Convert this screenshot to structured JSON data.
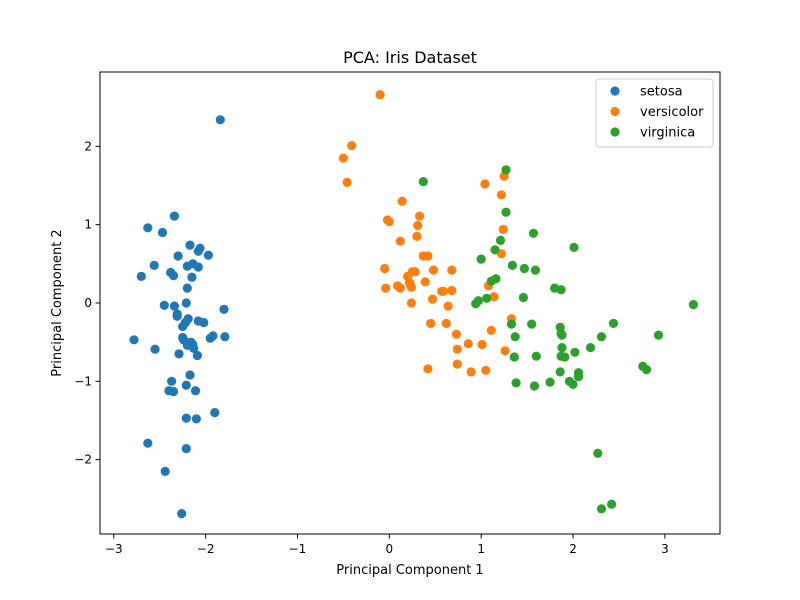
{
  "chart_data": {
    "type": "scatter",
    "title": "PCA: Iris Dataset",
    "xlabel": "Principal Component 1",
    "ylabel": "Principal Component 2",
    "xlim": [
      -3.15,
      3.6
    ],
    "ylim": [
      -2.95,
      2.95
    ],
    "xticks": [
      -3,
      -2,
      -1,
      0,
      1,
      2,
      3
    ],
    "yticks": [
      -2,
      -1,
      0,
      1,
      2
    ],
    "xtick_labels": [
      "−3",
      "−2",
      "−1",
      "0",
      "1",
      "2",
      "3"
    ],
    "ytick_labels": [
      "−2",
      "−1",
      "0",
      "1",
      "2"
    ],
    "grid": false,
    "legend_position": "top-right",
    "series": [
      {
        "name": "setosa",
        "color": "#1f77b4",
        "x": [
          -1.84,
          -2.63,
          -2.47,
          -2.34,
          -2.17,
          -2.06,
          -2.08,
          -2.2,
          -2.38,
          -2.35,
          -1.97,
          -2.3,
          -2.56,
          -2.14,
          -2.2,
          -2.08,
          -2.15,
          -2.7,
          -2.34,
          -2.21,
          -1.8,
          -2.45,
          -2.31,
          -2.19,
          -2.02,
          -2.31,
          -2.08,
          -2.22,
          -2.25,
          -2.25,
          -1.92,
          -2.16,
          -2.78,
          -2.55,
          -2.2,
          -2.14,
          -2.24,
          -2.09,
          -2.29,
          -2.13,
          -1.95,
          -1.79,
          -2.17,
          -2.37,
          -2.21,
          -2.11,
          -2.21,
          -2.1,
          -2.4,
          -2.35,
          -1.9,
          -2.63,
          -2.44,
          -2.21,
          -2.26
        ],
        "y": [
          2.34,
          0.96,
          0.9,
          1.11,
          0.74,
          0.7,
          0.66,
          0.19,
          0.39,
          0.35,
          0.61,
          0.6,
          0.48,
          0.5,
          0.47,
          0.46,
          0.33,
          0.34,
          -0.04,
          0.0,
          -0.08,
          -0.03,
          -0.14,
          -0.2,
          -0.25,
          -0.17,
          -0.23,
          -0.25,
          -0.3,
          -0.44,
          -0.42,
          -0.5,
          -0.47,
          -0.59,
          -0.54,
          -0.53,
          -0.47,
          -0.67,
          -0.65,
          -0.58,
          -0.45,
          -0.43,
          -0.92,
          -1.0,
          -1.05,
          -1.12,
          -1.47,
          -1.48,
          -1.12,
          -1.13,
          -1.4,
          -1.79,
          -2.15,
          -1.86,
          -2.69
        ]
      },
      {
        "name": "versicolor",
        "color": "#ff7f0e",
        "x": [
          -0.1,
          -0.41,
          -0.5,
          -0.46,
          -0.02,
          0.0,
          0.12,
          0.42,
          0.57,
          0.22,
          0.31,
          0.14,
          0.3,
          0.33,
          0.2,
          0.24,
          -0.05,
          0.39,
          0.25,
          0.48,
          0.68,
          0.24,
          0.23,
          -0.04,
          0.09,
          0.12,
          0.47,
          0.28,
          0.37,
          0.59,
          0.68,
          0.64,
          0.73,
          0.45,
          0.62,
          0.86,
          0.74,
          0.74,
          0.89,
          1.01,
          1.05,
          1.11,
          1.26,
          1.33,
          1.08,
          1.22,
          1.22,
          1.25,
          1.04,
          0.42,
          1.24,
          1.14
        ],
        "y": [
          2.66,
          2.01,
          1.85,
          1.54,
          1.06,
          1.04,
          0.79,
          0.6,
          0.15,
          0.26,
          0.99,
          1.3,
          0.85,
          1.11,
          0.34,
          0.0,
          0.44,
          0.27,
          0.4,
          0.42,
          0.42,
          0.2,
          0.23,
          0.19,
          0.22,
          0.19,
          0.05,
          0.4,
          0.6,
          0.15,
          0.16,
          -0.04,
          -0.4,
          -0.26,
          -0.26,
          -0.52,
          -0.59,
          -0.78,
          -0.88,
          -0.53,
          -0.86,
          -0.35,
          -0.61,
          -0.2,
          0.22,
          0.63,
          1.38,
          1.62,
          1.52,
          -0.84,
          0.94,
          0.08
        ]
      },
      {
        "name": "virginica",
        "color": "#2ca02c",
        "x": [
          1.27,
          1.27,
          1.57,
          2.01,
          1.0,
          1.15,
          1.21,
          1.34,
          1.47,
          1.59,
          1.8,
          1.87,
          1.11,
          1.16,
          0.94,
          0.97,
          1.06,
          1.46,
          1.55,
          1.33,
          1.37,
          1.6,
          1.86,
          1.87,
          1.88,
          1.88,
          1.87,
          1.91,
          2.02,
          2.06,
          2.19,
          2.31,
          2.44,
          2.76,
          2.8,
          2.93,
          1.36,
          1.58,
          1.75,
          1.86,
          1.96,
          2.0,
          2.06,
          1.38,
          3.31,
          2.27,
          2.31,
          2.42,
          0.37
        ],
        "y": [
          1.7,
          1.16,
          0.89,
          0.71,
          0.56,
          0.68,
          0.8,
          0.48,
          0.44,
          0.42,
          0.19,
          0.17,
          0.28,
          0.31,
          -0.01,
          0.03,
          0.06,
          0.07,
          -0.27,
          -0.27,
          -0.43,
          -0.68,
          -0.31,
          -0.39,
          -0.41,
          -0.57,
          -0.68,
          -0.69,
          -0.63,
          -0.89,
          -0.57,
          -0.43,
          -0.26,
          -0.81,
          -0.85,
          -0.41,
          -0.69,
          -1.06,
          -1.01,
          -0.88,
          -1.0,
          -1.04,
          -0.94,
          -1.02,
          -0.02,
          -1.92,
          -2.63,
          -2.57,
          1.55
        ]
      }
    ]
  }
}
